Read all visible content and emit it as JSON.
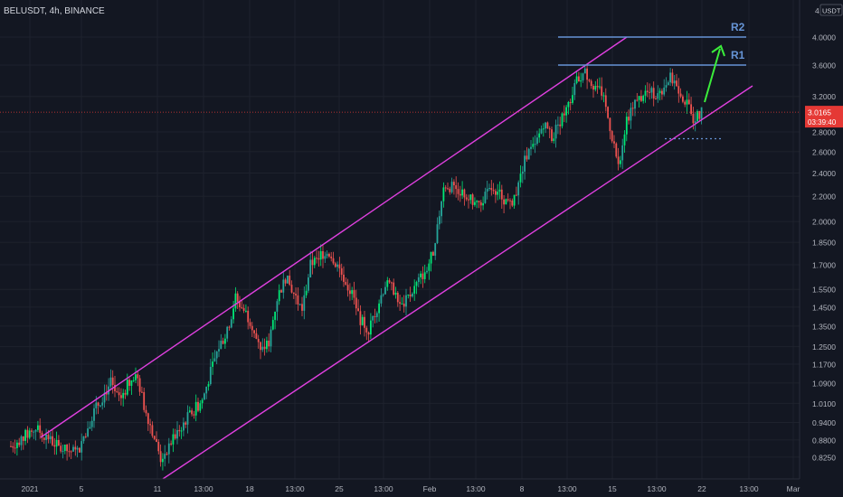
{
  "chart_data": {
    "type": "candlestick",
    "symbol_label": "BELUSDT, 4h, BINANCE",
    "y_axis": {
      "scale": "log",
      "ylim": [
        0.8,
        4.1
      ],
      "ticks": [
        "0.8250",
        "0.8800",
        "0.9400",
        "1.0100",
        "1.0900",
        "1.1700",
        "1.2500",
        "1.3500",
        "1.4500",
        "1.5500",
        "1.7000",
        "1.8500",
        "2.0000",
        "2.2000",
        "2.4000",
        "2.6000",
        "2.8000",
        "3.2000",
        "3.6000",
        "4.0000"
      ],
      "currency": "USDT",
      "top_tick": "4"
    },
    "x_axis": {
      "ticks": [
        "2021",
        "5",
        "11",
        "13:00",
        "18",
        "13:00",
        "25",
        "13:00",
        "Feb",
        "13:00",
        "8",
        "13:00",
        "15",
        "13:00",
        "22",
        "13:00",
        "Mar"
      ]
    },
    "last_price": {
      "value": "3.0165",
      "countdown": "03:39:40"
    },
    "levels": [
      {
        "name": "R1",
        "value": 3.6
      },
      {
        "name": "R2",
        "value": 4.0
      }
    ],
    "channel": {
      "type": "ascending",
      "color": "#e040e0"
    },
    "support_dotted": 2.73,
    "price_path": [
      [
        0,
        0.86
      ],
      [
        3,
        0.92
      ],
      [
        6,
        0.85
      ],
      [
        8,
        0.84
      ],
      [
        10,
        0.98
      ],
      [
        12,
        1.09
      ],
      [
        13,
        1.02
      ],
      [
        15,
        1.14
      ],
      [
        16,
        1.0
      ],
      [
        18,
        0.82
      ],
      [
        19,
        0.86
      ],
      [
        21,
        0.95
      ],
      [
        23,
        1.02
      ],
      [
        25,
        1.25
      ],
      [
        26,
        1.32
      ],
      [
        27,
        1.5
      ],
      [
        29,
        1.36
      ],
      [
        30,
        1.22
      ],
      [
        31,
        1.27
      ],
      [
        32,
        1.5
      ],
      [
        33,
        1.62
      ],
      [
        35,
        1.43
      ],
      [
        36,
        1.7
      ],
      [
        38,
        1.8
      ],
      [
        39,
        1.72
      ],
      [
        41,
        1.52
      ],
      [
        42,
        1.38
      ],
      [
        43,
        1.33
      ],
      [
        44,
        1.45
      ],
      [
        45,
        1.58
      ],
      [
        46,
        1.55
      ],
      [
        47,
        1.45
      ],
      [
        48,
        1.52
      ],
      [
        50,
        1.68
      ],
      [
        51,
        1.82
      ],
      [
        52,
        2.3
      ],
      [
        54,
        2.25
      ],
      [
        56,
        2.12
      ],
      [
        58,
        2.28
      ],
      [
        60,
        2.12
      ],
      [
        61,
        2.3
      ],
      [
        62,
        2.58
      ],
      [
        63,
        2.65
      ],
      [
        64,
        2.9
      ],
      [
        65,
        2.75
      ],
      [
        67,
        3.1
      ],
      [
        68,
        3.4
      ],
      [
        69,
        3.5
      ],
      [
        70,
        3.35
      ],
      [
        71,
        3.25
      ],
      [
        72,
        2.85
      ],
      [
        73,
        2.45
      ],
      [
        74,
        2.95
      ],
      [
        75,
        3.1
      ],
      [
        76,
        3.25
      ],
      [
        78,
        3.22
      ],
      [
        79,
        3.45
      ],
      [
        80,
        3.35
      ],
      [
        81,
        3.15
      ],
      [
        82,
        2.95
      ],
      [
        83,
        3.0165
      ]
    ],
    "projection_arrow": "up",
    "colors": {
      "up": "#26a69a",
      "up_bright": "#00e676",
      "down": "#ef5350",
      "line": "#6694d6",
      "arrow": "#3bed3b",
      "badge": "#e53935"
    }
  }
}
